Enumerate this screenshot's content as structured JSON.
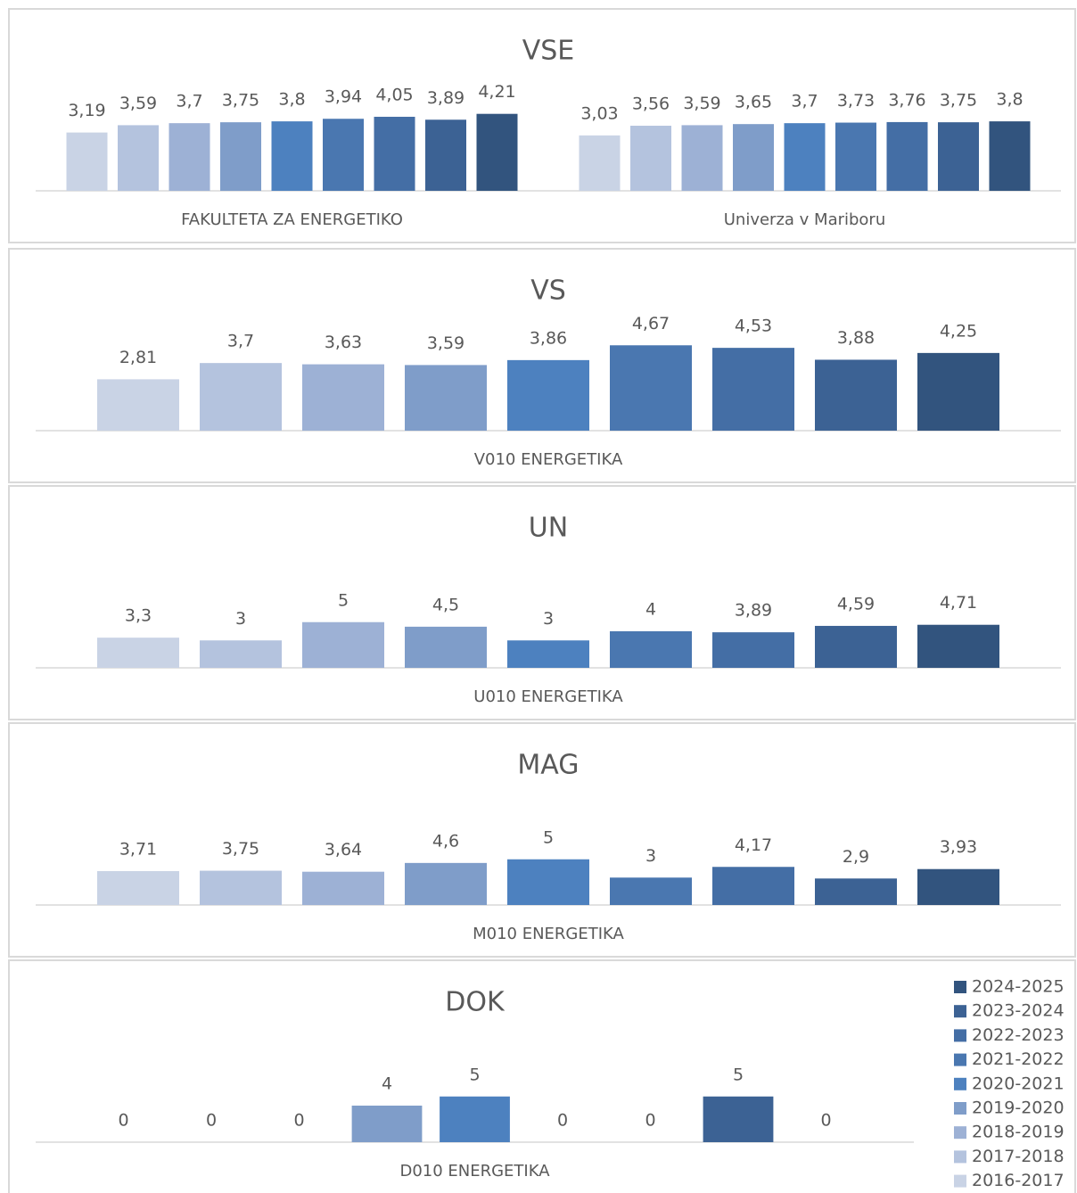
{
  "chart_data": [
    {
      "type": "bar",
      "title": "VSE",
      "categories": [
        "FAKULTETA ZA ENERGETIKO",
        "Univerza v Mariboru"
      ],
      "ylim": [
        0,
        6
      ],
      "series": [
        {
          "color": "#c9d3e5",
          "values": [
            3.19,
            3.03
          ],
          "value_labels": [
            "3,19",
            "3,03"
          ]
        },
        {
          "color": "#b4c3de",
          "values": [
            3.59,
            3.56
          ],
          "value_labels": [
            "3,59",
            "3,56"
          ]
        },
        {
          "color": "#9db1d5",
          "values": [
            3.7,
            3.59
          ],
          "value_labels": [
            "3,7",
            "3,59"
          ]
        },
        {
          "color": "#7f9dc9",
          "values": [
            3.75,
            3.65
          ],
          "value_labels": [
            "3,75",
            "3,65"
          ]
        },
        {
          "color": "#4d81bf",
          "values": [
            3.8,
            3.7
          ],
          "value_labels": [
            "3,8",
            "3,7"
          ]
        },
        {
          "color": "#4a77b0",
          "values": [
            3.94,
            3.73
          ],
          "value_labels": [
            "3,94",
            "3,73"
          ]
        },
        {
          "color": "#446ea5",
          "values": [
            4.05,
            3.76
          ],
          "value_labels": [
            "4,05",
            "3,76"
          ]
        },
        {
          "color": "#3c6294",
          "values": [
            3.89,
            3.75
          ],
          "value_labels": [
            "3,89",
            "3,75"
          ]
        },
        {
          "color": "#32547e",
          "values": [
            4.21,
            3.8
          ],
          "value_labels": [
            "4,21",
            "3,8"
          ]
        }
      ]
    },
    {
      "type": "bar",
      "title": "VS",
      "categories": [
        "V010 ENERGETIKA"
      ],
      "ylim": [
        0,
        6
      ],
      "series": [
        {
          "color": "#c9d3e5",
          "values": [
            2.81
          ],
          "value_labels": [
            "2,81"
          ]
        },
        {
          "color": "#b4c3de",
          "values": [
            3.7
          ],
          "value_labels": [
            "3,7"
          ]
        },
        {
          "color": "#9db1d5",
          "values": [
            3.63
          ],
          "value_labels": [
            "3,63"
          ]
        },
        {
          "color": "#7f9dc9",
          "values": [
            3.59
          ],
          "value_labels": [
            "3,59"
          ]
        },
        {
          "color": "#4d81bf",
          "values": [
            3.86
          ],
          "value_labels": [
            "3,86"
          ]
        },
        {
          "color": "#4a77b0",
          "values": [
            4.67
          ],
          "value_labels": [
            "4,67"
          ]
        },
        {
          "color": "#446ea5",
          "values": [
            4.53
          ],
          "value_labels": [
            "4,53"
          ]
        },
        {
          "color": "#3c6294",
          "values": [
            3.88
          ],
          "value_labels": [
            "3,88"
          ]
        },
        {
          "color": "#32547e",
          "values": [
            4.25
          ],
          "value_labels": [
            "4,25"
          ]
        }
      ]
    },
    {
      "type": "bar",
      "title": "UN",
      "categories": [
        "U010 ENERGETIKA"
      ],
      "ylim": [
        0,
        12
      ],
      "series": [
        {
          "color": "#c9d3e5",
          "values": [
            3.3
          ],
          "value_labels": [
            "3,3"
          ]
        },
        {
          "color": "#b4c3de",
          "values": [
            3
          ]
        },
        {
          "color": "#9db1d5",
          "values": [
            5
          ]
        },
        {
          "color": "#7f9dc9",
          "values": [
            4.5
          ],
          "value_labels": [
            "4,5"
          ]
        },
        {
          "color": "#4d81bf",
          "values": [
            3
          ]
        },
        {
          "color": "#4a77b0",
          "values": [
            4
          ]
        },
        {
          "color": "#446ea5",
          "values": [
            3.89
          ],
          "value_labels": [
            "3,89"
          ]
        },
        {
          "color": "#3c6294",
          "values": [
            4.59
          ],
          "value_labels": [
            "4,59"
          ]
        },
        {
          "color": "#32547e",
          "values": [
            4.71
          ],
          "value_labels": [
            "4,71"
          ]
        }
      ]
    },
    {
      "type": "bar",
      "title": "MAG",
      "categories": [
        "M010 ENERGETIKA"
      ],
      "ylim": [
        0,
        12
      ],
      "series": [
        {
          "color": "#c9d3e5",
          "values": [
            3.71
          ],
          "value_labels": [
            "3,71"
          ]
        },
        {
          "color": "#b4c3de",
          "values": [
            3.75
          ],
          "value_labels": [
            "3,75"
          ]
        },
        {
          "color": "#9db1d5",
          "values": [
            3.64
          ],
          "value_labels": [
            "3,64"
          ]
        },
        {
          "color": "#7f9dc9",
          "values": [
            4.6
          ],
          "value_labels": [
            "4,6"
          ]
        },
        {
          "color": "#4d81bf",
          "values": [
            5
          ]
        },
        {
          "color": "#4a77b0",
          "values": [
            3
          ]
        },
        {
          "color": "#446ea5",
          "values": [
            4.17
          ],
          "value_labels": [
            "4,17"
          ]
        },
        {
          "color": "#3c6294",
          "values": [
            2.9
          ],
          "value_labels": [
            "2,9"
          ]
        },
        {
          "color": "#32547e",
          "values": [
            3.93
          ],
          "value_labels": [
            "3,93"
          ]
        }
      ]
    },
    {
      "type": "bar",
      "title": "DOK",
      "categories": [
        "D010 ENERGETIKA"
      ],
      "ylim": [
        0,
        12
      ],
      "legend": "right",
      "series": [
        {
          "name": "2016-2017",
          "color": "#c9d3e5",
          "values": [
            0
          ]
        },
        {
          "name": "2017-2018",
          "color": "#b4c3de",
          "values": [
            0
          ]
        },
        {
          "name": "2018-2019",
          "color": "#9db1d5",
          "values": [
            0
          ]
        },
        {
          "name": "2019-2020",
          "color": "#7f9dc9",
          "values": [
            4
          ]
        },
        {
          "name": "2020-2021",
          "color": "#4d81bf",
          "values": [
            5
          ]
        },
        {
          "name": "2021-2022",
          "color": "#4a77b0",
          "values": [
            0
          ]
        },
        {
          "name": "2022-2023",
          "color": "#446ea5",
          "values": [
            0
          ]
        },
        {
          "name": "2023-2024",
          "color": "#3c6294",
          "values": [
            5
          ]
        },
        {
          "name": "2024-2025",
          "color": "#32547e",
          "values": [
            0
          ]
        }
      ]
    }
  ]
}
